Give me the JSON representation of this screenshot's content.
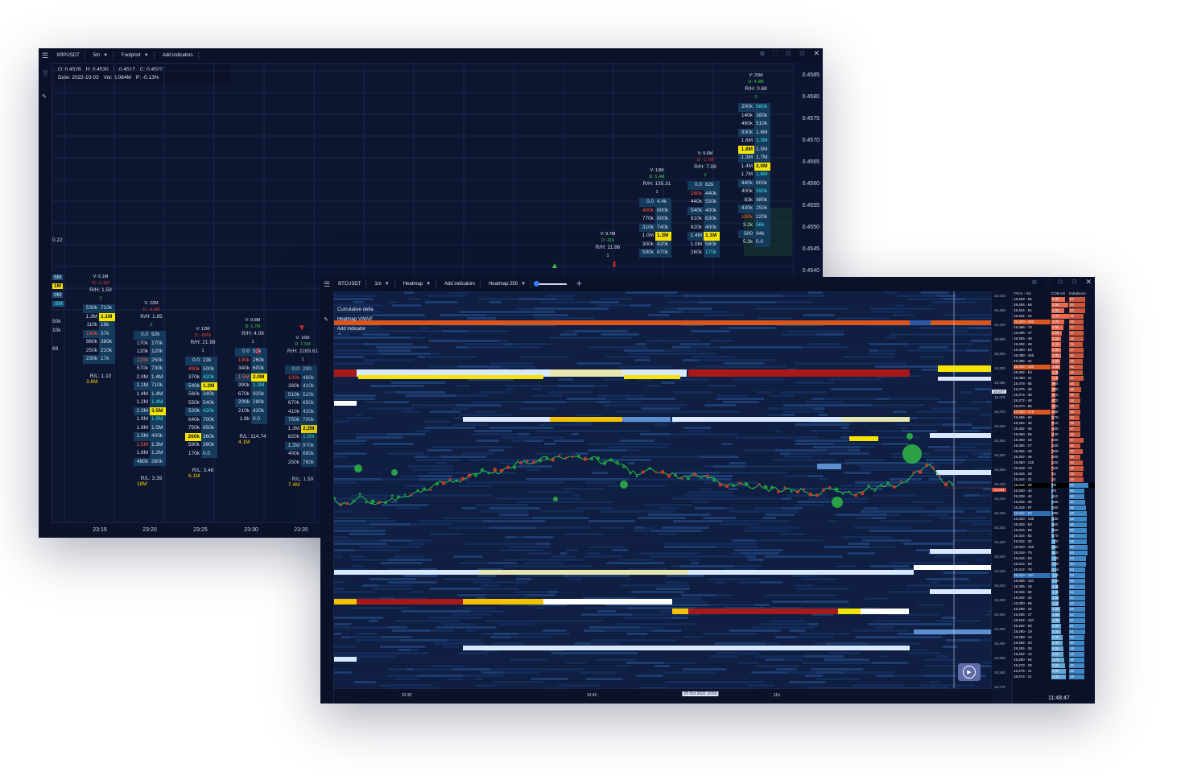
{
  "back_window": {
    "toolbar": {
      "symbol": "XRPUSDT",
      "interval": "5m",
      "chart_type": "Footprint",
      "add_indicators": "Add indicators"
    },
    "ohlc": {
      "open": "O: 0.4528",
      "high": "H: 0.4530",
      "low": "L: 0.4517",
      "close": "C: 0.4522",
      "date": "Date: 2022-10-03",
      "vol": "Vol: 6.084M",
      "pct": "P: -0.13%"
    },
    "price_axis": [
      "0.4585",
      "0.4580",
      "0.4575",
      "0.4570",
      "0.4565",
      "0.4560",
      "0.4555",
      "0.4550",
      "0.4545",
      "0.4540"
    ],
    "time_axis": [
      "23:15",
      "23:20",
      "23:25",
      "23:30",
      "23:35"
    ],
    "left_edge": {
      "price": "0.22",
      "l1": "5M",
      "l2": "1M",
      "l3": "0M",
      "l4": ".5M",
      "l5": "50k",
      "l6": "69",
      "l7": "10k",
      "l8": "0"
    },
    "cols": [
      {
        "v": "V: 6.1M",
        "d": "D: -1.1M",
        "rh": "R/H: 1.59",
        "n": "2",
        "rows": [
          [
            "530k",
            "710k"
          ],
          [
            "1.3M",
            "1.1M"
          ],
          [
            "110k",
            "19k"
          ],
          [
            "190k",
            "57k"
          ],
          [
            "960k",
            "380k"
          ],
          [
            "250k",
            "210k"
          ],
          [
            "230k",
            "17k"
          ]
        ],
        "rl": "R/L: 1.10",
        "foot": "3.6M"
      },
      {
        "v": "V: 22M",
        "d": "D: -4.4M",
        "rh": "R/H: 1.85",
        "n": "2",
        "rows": [
          [
            "0.0",
            "92k"
          ],
          [
            "170k",
            "170k"
          ],
          [
            "120k",
            "120k"
          ],
          [
            "220k",
            "250k"
          ],
          [
            "570k",
            "730k"
          ],
          [
            "2.0M",
            "1.4M"
          ],
          [
            "1.1M",
            "710k"
          ],
          [
            "1.4M",
            "1.4M"
          ],
          [
            "1.2M",
            "1.4M"
          ],
          [
            "2.3M",
            "3.5M"
          ],
          [
            "1.9M",
            "1.5M"
          ],
          [
            "1.9M",
            "1.5M"
          ],
          [
            "1.5M",
            "400k"
          ],
          [
            "1.5M",
            "1.3M"
          ],
          [
            "1.6M",
            "1.2M"
          ],
          [
            "480k",
            "280k"
          ]
        ],
        "rl": "R/L: 3.39",
        "foot": "18M"
      },
      {
        "v": "V: 12M",
        "d": "D: -896k",
        "rh": "R/H: 21.98",
        "n": "1",
        "rows": [
          [
            "0.0",
            "23k"
          ],
          [
            "490k",
            "500k"
          ],
          [
            "370k",
            "420k"
          ],
          [
            "540k",
            "1.2M"
          ],
          [
            "560k",
            "340k"
          ],
          [
            "550k",
            "540k"
          ],
          [
            "520k",
            "420k"
          ],
          [
            "640k",
            "700k"
          ],
          [
            "750k",
            "650k"
          ],
          [
            "260k",
            "360k"
          ],
          [
            "590k",
            "390k"
          ],
          [
            "170k",
            "0.0"
          ]
        ],
        "rl": "R/L: 3.46",
        "foot": "6.1M"
      },
      {
        "v": "V: 9.8M",
        "d": "D: 1.7M",
        "rh": "R/H: 4.09",
        "n": "1",
        "rows": [
          [
            "0.0",
            "52k"
          ],
          [
            "190k",
            "260k"
          ],
          [
            "340k",
            "600k"
          ],
          [
            "1.5M",
            "2.0M"
          ],
          [
            "990k",
            "1.3M"
          ],
          [
            "670k",
            "920k"
          ],
          [
            "200k",
            "280k"
          ],
          [
            "210k",
            "420k"
          ],
          [
            "1.8k",
            "0.0"
          ]
        ],
        "rl": "R/L: 114.74",
        "foot": "4.1M"
      },
      {
        "v": "V: 16M",
        "d": "D: 1.5M",
        "rh": "R/H: 2289.61",
        "n": "1",
        "rows": [
          [
            "0.0",
            "200"
          ],
          [
            "100k",
            "460k"
          ],
          [
            "380k",
            "410k"
          ],
          [
            "510k",
            "520k"
          ],
          [
            "670k",
            "650k"
          ],
          [
            "410k",
            "420k"
          ],
          [
            "750k",
            "700k"
          ],
          [
            "1.3M",
            "2.2M"
          ],
          [
            "820k",
            "1.5M"
          ],
          [
            "1.2M",
            "970k"
          ],
          [
            "400k",
            "680k"
          ],
          [
            "250k",
            "760k"
          ]
        ],
        "rl": "R/L: 1.59",
        "foot": "7.4M"
      },
      {
        "v": "V: 9.7M",
        "d": "D: 41k",
        "rh": "R/H: 11.86",
        "n": "1",
        "rows": []
      },
      {
        "v": "V: 13M",
        "d": "D: 1.4M",
        "rh": "R/H: 135.31",
        "n": "1",
        "rows": [
          [
            "0.0",
            "4.4k"
          ],
          [
            "400k",
            "600k"
          ],
          [
            "770k",
            "800k"
          ],
          [
            "310k",
            "740k"
          ],
          [
            "1.0M",
            "1.3M"
          ],
          [
            "300k",
            "420k"
          ],
          [
            "590k",
            "670k"
          ]
        ]
      },
      {
        "v": "V: 9.6M",
        "d": "D: -1.7M",
        "rh": "R/H: 7.08",
        "n": "2",
        "rows": [
          [
            "0.0",
            "62k"
          ],
          [
            "260k",
            "440k"
          ],
          [
            "440k",
            "550k"
          ],
          [
            "540k",
            "400k"
          ],
          [
            "810k",
            "630k"
          ],
          [
            "820k",
            "400k"
          ],
          [
            "1.4M",
            "1.1M"
          ],
          [
            "1.0M",
            "580k"
          ],
          [
            "260k",
            "170k"
          ]
        ]
      },
      {
        "v": "V: 25M",
        "d": "D: 4.3M",
        "rh": "R/H: 0.68",
        "n": "0",
        "rows": [
          [
            "200k",
            "560k"
          ],
          [
            "140k",
            "380k"
          ],
          [
            "460k",
            "510k"
          ],
          [
            "930k",
            "1.6M"
          ],
          [
            "1.6M",
            "1.3M"
          ],
          [
            "1.8M",
            "1.5M"
          ],
          [
            "1.3M",
            "1.7M"
          ],
          [
            "1.4M",
            "2.0M"
          ],
          [
            "1.7M",
            "1.6M"
          ],
          [
            "440k",
            "800k"
          ],
          [
            "400k",
            "590k"
          ],
          [
            "83k",
            "480k"
          ],
          [
            "430k",
            "250k"
          ],
          [
            "190k",
            "220k"
          ],
          [
            "3.2k",
            "56k"
          ],
          [
            "500",
            "94k"
          ],
          [
            "5.3k",
            "0.0"
          ]
        ]
      }
    ]
  },
  "front_window": {
    "toolbar": {
      "symbol": "BTCUSDT",
      "interval": "1m",
      "chart_type": "Heatmap",
      "add_indicators": "Add indicators",
      "heatmap_setting": "Heatmap 250"
    },
    "overlay": {
      "cum_delta": "Cumulative delta",
      "vwap": "Heatmap VWAP",
      "add_indicator": "Add indicator"
    },
    "time_axis": [
      "10:30",
      "10:45",
      "25 Oct 2022 10:53",
      "11h"
    ],
    "clock": "11:48:47",
    "price_marker": "19,377",
    "current_price": "19,341",
    "heatmap_axis": [
      "19,410",
      "19,405",
      "19,400",
      "19,395",
      "19,390",
      "19,385",
      "19,380",
      "19,375",
      "19,370",
      "19,365",
      "19,360",
      "19,355",
      "19,350",
      "19,345",
      "19,340",
      "19,335",
      "19,330",
      "19,325",
      "19,320",
      "19,315",
      "19,310",
      "19,305",
      "19,300",
      "19,295",
      "19,290",
      "19,285",
      "19,280",
      "19,275"
    ],
    "orderbook": {
      "headers": [
        "Price - Vol",
        "COB AG",
        "Imbalance"
      ],
      "rows": [
        [
          "19,408 - 56",
          "2.9k",
          "52",
          "a"
        ],
        [
          "19,406 - 66",
          "3.5k",
          "52",
          "a"
        ],
        [
          "19,404 - 61",
          "2.8k",
          "52",
          "a"
        ],
        [
          "19,402 - 24",
          "3.7k",
          "48",
          "a"
        ],
        [
          "19,400 - 493",
          "2.7k",
          "48",
          "a"
        ],
        [
          "19,398 - 73",
          "2.5k",
          "47",
          "a"
        ],
        [
          "19,396 - 47",
          "2.2k",
          "47",
          "a"
        ],
        [
          "19,394 - 49",
          "2.1k",
          "48",
          "a"
        ],
        [
          "19,392 - 49",
          "2.1k",
          "45",
          "a"
        ],
        [
          "19,390 - 53",
          "2.0k",
          "47",
          "a"
        ],
        [
          "19,388 - 160",
          "2.0k",
          "46",
          "a"
        ],
        [
          "19,386 - 31",
          "1.9k",
          "45",
          "a"
        ],
        [
          "19,384 - 160",
          "1.8k",
          "45",
          "a"
        ],
        [
          "19,382 - 53",
          "1.4k",
          "45",
          "a"
        ],
        [
          "19,380 - 41",
          "1.4k",
          "46",
          "a"
        ],
        [
          "19,378 - 55",
          "890",
          "35",
          "a"
        ],
        [
          "19,376 - 35",
          "890",
          "38",
          "a"
        ],
        [
          "19,374 - 38",
          "810",
          "35",
          "a"
        ],
        [
          "19,372 - 48",
          "870",
          "36",
          "a"
        ],
        [
          "19,370 - 85",
          "820",
          "35",
          "a"
        ],
        [
          "19,368 - 170",
          "680",
          "36",
          "a"
        ],
        [
          "19,366 - 60",
          "570",
          "34",
          "a"
        ],
        [
          "19,364 - 36",
          "510",
          "36",
          "a"
        ],
        [
          "19,362 - 35",
          "460",
          "37",
          "a"
        ],
        [
          "19,360 - 65",
          "430",
          "36",
          "a"
        ],
        [
          "19,358 - 34",
          "330",
          "47",
          "a"
        ],
        [
          "19,356 - 27",
          "330",
          "36",
          "a"
        ],
        [
          "19,354 - 33",
          "300",
          "43",
          "a"
        ],
        [
          "19,352 - 45",
          "260",
          "36",
          "a"
        ],
        [
          "19,350 - 120",
          "220",
          "44",
          "a"
        ],
        [
          "19,348 - 73",
          "100",
          "46",
          "a"
        ],
        [
          "19,346 - 29",
          "61",
          "45",
          "a"
        ],
        [
          "19,344 - 31",
          "31",
          "46",
          "a"
        ],
        [
          "19,342 - 29",
          "29",
          "62",
          "b"
        ],
        [
          "19,340 - 42",
          "70",
          "50",
          "b"
        ],
        [
          "19,338 - 42",
          "110",
          "50",
          "b"
        ],
        [
          "19,336 - 35",
          "150",
          "52",
          "b"
        ],
        [
          "19,334 - 87",
          "180",
          "55",
          "b"
        ],
        [
          "19,332 - 60",
          "290",
          "58",
          "b"
        ],
        [
          "19,330 - 130",
          "430",
          "58",
          "b"
        ],
        [
          "19,328 - 83",
          "500",
          "56",
          "b"
        ],
        [
          "19,326 - 89",
          "550",
          "58",
          "b"
        ],
        [
          "19,324 - 82",
          "570",
          "58",
          "b"
        ],
        [
          "19,322 - 32",
          "770",
          "58",
          "b"
        ],
        [
          "19,320 - 120",
          "880",
          "60",
          "b"
        ],
        [
          "19,318 - 76",
          "900",
          "60",
          "b"
        ],
        [
          "19,316 - 50",
          "1.0k",
          "54",
          "b"
        ],
        [
          "19,314 - 50",
          "1.0k",
          "54",
          "b"
        ],
        [
          "19,312 - 76",
          "1.1k",
          "53",
          "b"
        ],
        [
          "19,310 - 110",
          "1.2k",
          "53",
          "b"
        ],
        [
          "19,308 - 110",
          "1.2k",
          "53",
          "b"
        ],
        [
          "19,306 - 18",
          "1.3k",
          "52",
          "b"
        ],
        [
          "19,304 - 82",
          "1.4k",
          "52",
          "b"
        ],
        [
          "19,302 - 42",
          "1.5k",
          "52",
          "b"
        ],
        [
          "19,300 - 69",
          "1.6k",
          "52",
          "b"
        ],
        [
          "19,298 - 32",
          "1.8k",
          "52",
          "b"
        ],
        [
          "19,296 - 27",
          "1.8k",
          "52",
          "b"
        ],
        [
          "19,294 - 110",
          "1.9k",
          "51",
          "b"
        ],
        [
          "19,292 - 50",
          "2.0k",
          "51",
          "b"
        ],
        [
          "19,290 - 19",
          "2.1k",
          "51",
          "b"
        ],
        [
          "19,288 - 14",
          "2.3k",
          "50",
          "b"
        ],
        [
          "19,286 - 20",
          "2.3k",
          "50",
          "b"
        ],
        [
          "19,284 - 36",
          "2.5k",
          "49",
          "b"
        ],
        [
          "19,282 - 14",
          "2.6k",
          "49",
          "b"
        ],
        [
          "19,280 - 54",
          "2.7k",
          "49",
          "b"
        ],
        [
          "19,278 - 20",
          "2.9k",
          "49",
          "b"
        ],
        [
          "19,276 - 11",
          "3.0k",
          "49",
          "b"
        ],
        [
          "19,274 - 21",
          "3.1k",
          "49",
          "b"
        ]
      ]
    }
  }
}
